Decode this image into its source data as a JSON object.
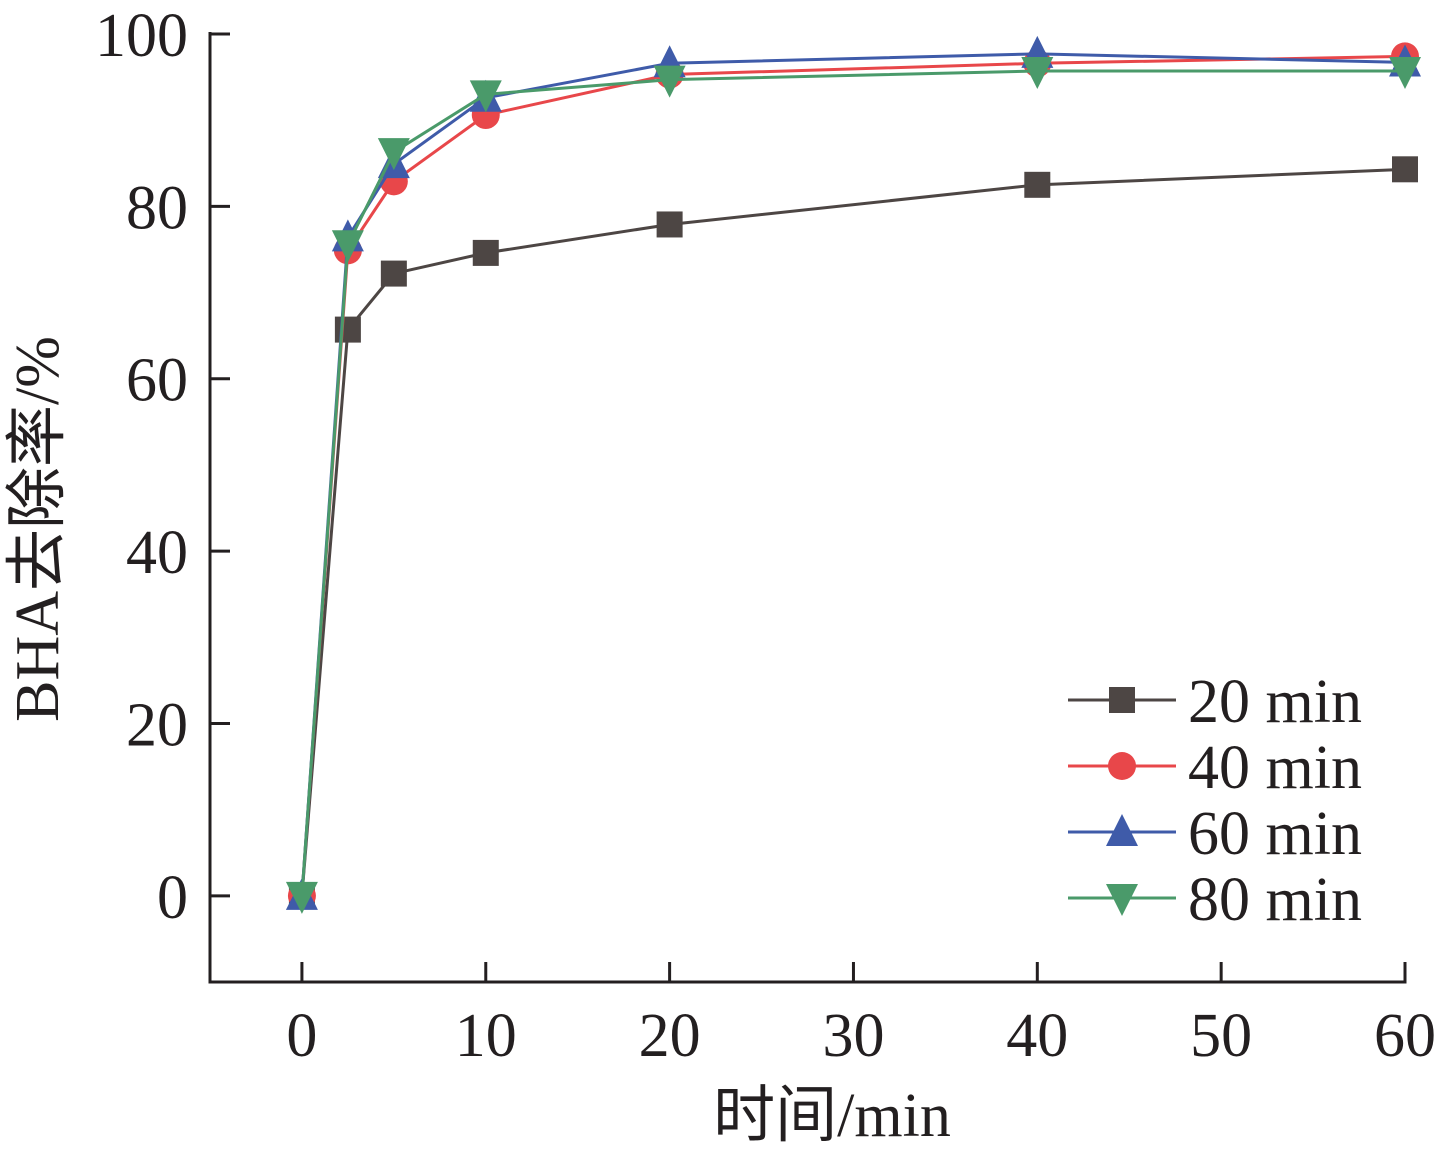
{
  "chart_data": {
    "type": "line",
    "xlabel": "时间/min",
    "ylabel": "BHA去除率/%",
    "xlim": [
      -5,
      60
    ],
    "ylim": [
      -10,
      100
    ],
    "x_ticks": [
      0,
      10,
      20,
      30,
      40,
      50,
      60
    ],
    "y_ticks": [
      0,
      20,
      40,
      60,
      80,
      100
    ],
    "grid": false,
    "legend_position": "bottom-right",
    "series": [
      {
        "name": "20 min",
        "color": "#4d4644",
        "marker": "square",
        "x": [
          0,
          2.5,
          5,
          10,
          20,
          40,
          60
        ],
        "y": [
          0,
          65.7,
          72.2,
          74.6,
          77.9,
          82.5,
          84.3
        ]
      },
      {
        "name": "40 min",
        "color": "#e8474a",
        "marker": "circle",
        "x": [
          0,
          2.5,
          5,
          10,
          20,
          40,
          60
        ],
        "y": [
          0,
          74.9,
          82.9,
          90.6,
          95.3,
          96.6,
          97.4
        ]
      },
      {
        "name": "60 min",
        "color": "#3f5ba9",
        "marker": "triangle-up",
        "x": [
          0,
          2.5,
          5,
          10,
          20,
          40,
          60
        ],
        "y": [
          0,
          76.4,
          84.9,
          92.6,
          96.6,
          97.7,
          96.7
        ]
      },
      {
        "name": "80 min",
        "color": "#4a9a6a",
        "marker": "triangle-down",
        "x": [
          0,
          2.5,
          5,
          10,
          20,
          40,
          60
        ],
        "y": [
          0,
          75.6,
          86.3,
          93.0,
          94.7,
          95.7,
          95.7
        ]
      }
    ]
  }
}
